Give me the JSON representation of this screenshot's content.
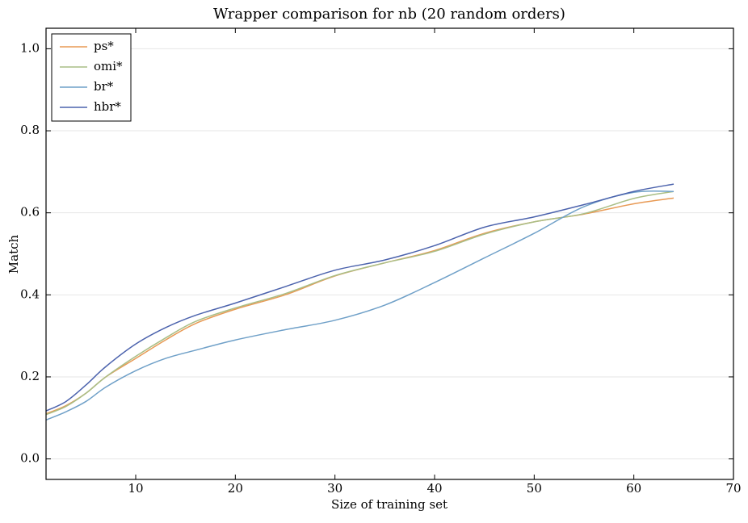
{
  "chart_data": {
    "type": "line",
    "title": "Wrapper comparison for nb (20 random orders)",
    "x_label": "Size of training set",
    "y_label": "Match",
    "x": [
      1,
      3,
      5,
      7,
      10,
      13,
      16,
      20,
      25,
      30,
      35,
      40,
      45,
      50,
      55,
      60,
      64
    ],
    "series": [
      {
        "name": "ps*",
        "color": "#e89a55",
        "values": [
          0.11,
          0.13,
          0.16,
          0.2,
          0.245,
          0.29,
          0.33,
          0.365,
          0.4,
          0.446,
          0.478,
          0.508,
          0.55,
          0.578,
          0.597,
          0.622,
          0.636
        ]
      },
      {
        "name": "omi*",
        "color": "#a9be86",
        "values": [
          0.108,
          0.128,
          0.16,
          0.2,
          0.25,
          0.295,
          0.335,
          0.368,
          0.403,
          0.447,
          0.478,
          0.506,
          0.548,
          0.578,
          0.598,
          0.635,
          0.652
        ]
      },
      {
        "name": "br*",
        "color": "#6fa0c8",
        "values": [
          0.095,
          0.115,
          0.14,
          0.175,
          0.215,
          0.245,
          0.265,
          0.29,
          0.315,
          0.338,
          0.375,
          0.43,
          0.49,
          0.55,
          0.615,
          0.65,
          0.652
        ]
      },
      {
        "name": "hbr*",
        "color": "#4c63ad",
        "values": [
          0.117,
          0.14,
          0.18,
          0.225,
          0.28,
          0.32,
          0.35,
          0.38,
          0.42,
          0.46,
          0.485,
          0.52,
          0.565,
          0.59,
          0.62,
          0.652,
          0.67
        ]
      }
    ],
    "xlim": [
      1,
      70
    ],
    "xticks": [
      10,
      20,
      30,
      40,
      50,
      60,
      70
    ],
    "ylim": [
      -0.05,
      1.05
    ],
    "yticks": [
      {
        "value": 0,
        "label": "0.0"
      },
      0.2,
      0.4,
      0.6,
      0.8,
      {
        "value": 1,
        "label": "1.0"
      }
    ],
    "grid": true,
    "legend": "upper left"
  }
}
